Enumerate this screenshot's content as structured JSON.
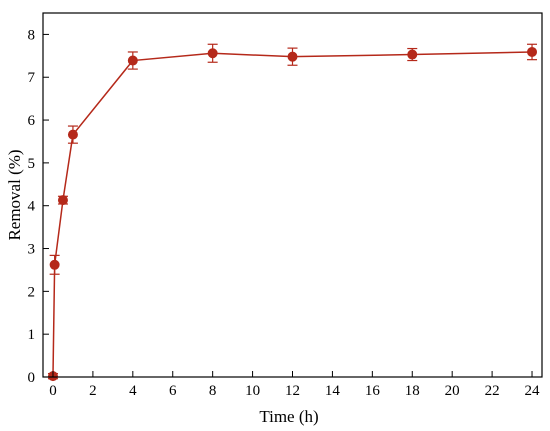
{
  "chart_data": {
    "type": "line",
    "title": "",
    "xlabel": "Time  (h)",
    "ylabel": "Removal (%)",
    "xlim": [
      -0.5,
      24.5
    ],
    "ylim": [
      0,
      8.5
    ],
    "xticks": [
      0,
      2,
      4,
      6,
      8,
      10,
      12,
      14,
      16,
      18,
      20,
      22,
      24
    ],
    "yticks": [
      0,
      1,
      2,
      3,
      4,
      5,
      6,
      7,
      8
    ],
    "grid": false,
    "legend": "none",
    "series": [
      {
        "color": "#b5291a",
        "x": [
          0,
          0.083,
          0.5,
          1,
          4,
          8,
          12,
          18,
          24
        ],
        "y": [
          0.02,
          2.62,
          4.13,
          5.66,
          7.39,
          7.56,
          7.48,
          7.53,
          7.59
        ],
        "err": [
          0.06,
          0.22,
          0.09,
          0.2,
          0.2,
          0.21,
          0.2,
          0.14,
          0.18
        ]
      }
    ]
  }
}
